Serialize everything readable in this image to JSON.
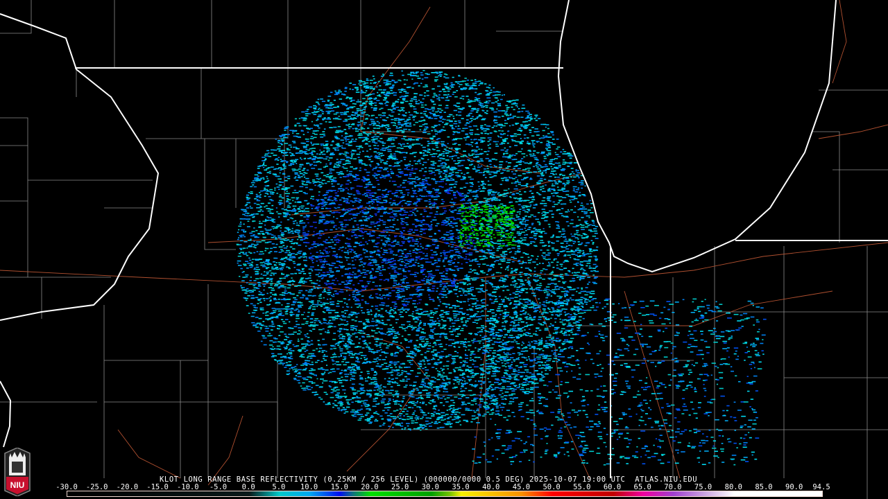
{
  "product": {
    "title": "KLOT LONG RANGE BASE REFLECTIVITY (0.25KM / 256 LEVEL) (000000/0000 0.5 DEG) 2025-10-07 19:00 UTC  ATLAS.NIU.EDU",
    "radar_site": "KLOT",
    "datetime": "2025-10-07 19:00 UTC",
    "source": "ATLAS.NIU.EDU"
  },
  "legend": {
    "unit_range": [
      -30.0,
      94.5
    ],
    "ticks": [
      "-30.0",
      "-25.0",
      "-20.0",
      "-15.0",
      "-10.0",
      "-5.0",
      "0.0",
      "5.0",
      "10.0",
      "15.0",
      "20.0",
      "25.0",
      "30.0",
      "35.0",
      "40.0",
      "45.0",
      "50.0",
      "55.0",
      "60.0",
      "65.0",
      "70.0",
      "75.0",
      "80.0",
      "85.0",
      "90.0",
      "94.5"
    ],
    "colors": {
      "0": "#0a1a1a",
      "5": "#00c8c8",
      "10": "#00a8f0",
      "15": "#0010f0",
      "17": "#107080",
      "20": "#00e000",
      "30": "#00a000",
      "33": "#70c000",
      "35": "#f8f000",
      "45": "#f89000",
      "50": "#ff0000",
      "60": "#c00000",
      "65": "#f000a0",
      "70": "#a040d0",
      "75": "#c8a0e0",
      "80": "#ffffff"
    }
  },
  "map": {
    "border_color": "#ffffff",
    "county_color": "#8c8c8c",
    "road_color": "#b05030"
  },
  "logo": {
    "text": "NIU",
    "color": "#c8102e"
  }
}
